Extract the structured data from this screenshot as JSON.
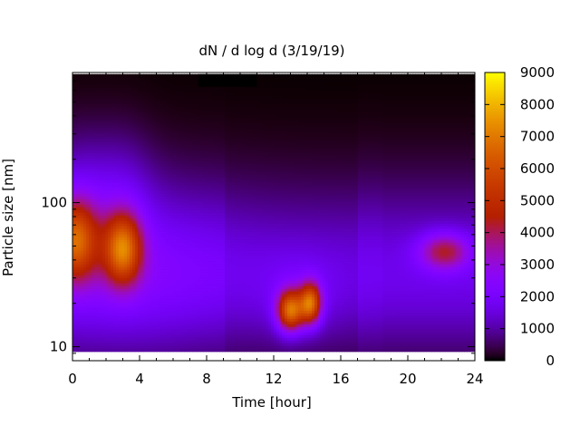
{
  "chart_data": {
    "type": "heatmap",
    "title": "dN / d log d (3/19/19)",
    "xlabel": "Time [hour]",
    "ylabel": "Particle size [nm]",
    "xlim": [
      0,
      24
    ],
    "ylim": [
      8,
      800
    ],
    "y_scale": "log",
    "x_ticks": [
      0,
      4,
      8,
      12,
      16,
      20,
      24
    ],
    "y_ticks": [
      10,
      100
    ],
    "data_y_range": [
      9.5,
      780
    ],
    "colorbar": {
      "range": [
        0,
        9000
      ],
      "ticks": [
        0,
        1000,
        2000,
        3000,
        4000,
        5000,
        6000,
        7000,
        8000,
        9000
      ],
      "palette": "gnuplot"
    },
    "features": [
      {
        "time_h": 0.3,
        "size_nm": 55,
        "peak": 5600
      },
      {
        "time_h": 3.0,
        "size_nm": 48,
        "peak": 6300
      },
      {
        "time_h": 13.0,
        "size_nm": 18,
        "peak": 7800
      },
      {
        "time_h": 14.2,
        "size_nm": 20,
        "peak": 7200
      },
      {
        "time_h": 22.2,
        "size_nm": 46,
        "peak": 4900
      }
    ]
  }
}
